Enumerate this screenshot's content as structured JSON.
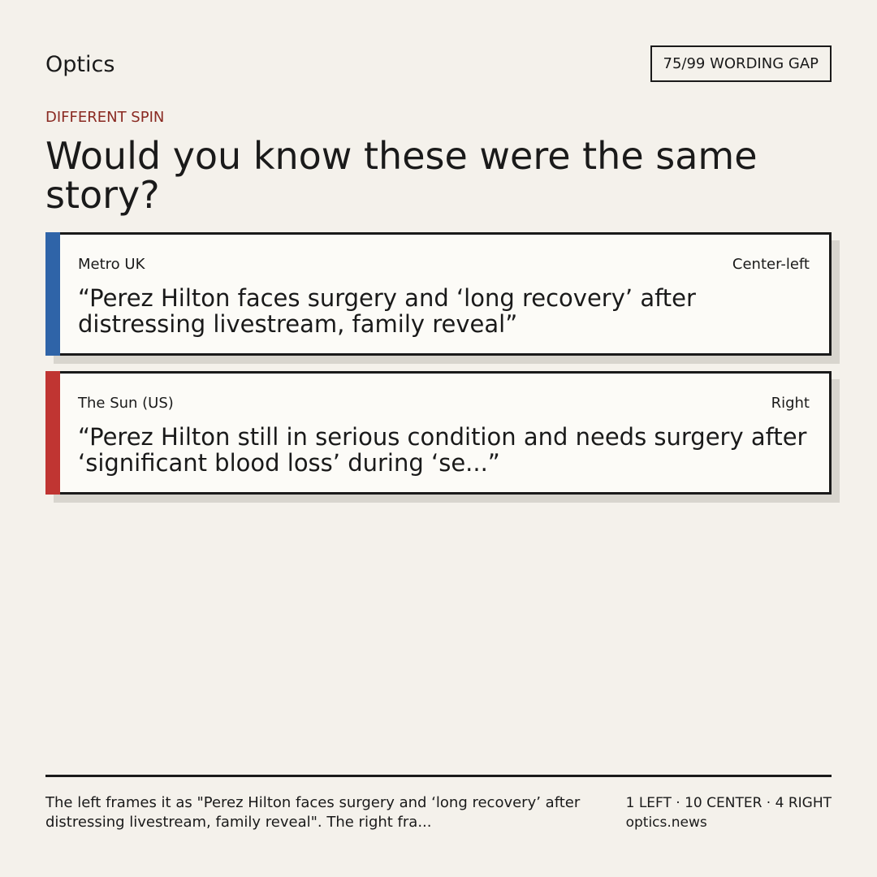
{
  "header": {
    "brand": "Optics",
    "badge": "75/99 WORDING GAP"
  },
  "kicker": "DIFFERENT SPIN",
  "headline": "Would you know these were the same story?",
  "cards": [
    {
      "outlet": "Metro UK",
      "lean": "Center-left",
      "quote": "“Perez Hilton faces surgery and ‘long recovery’ after distressing livestream, family reveal”"
    },
    {
      "outlet": "The Sun (US)",
      "lean": "Right",
      "quote": "“Perez Hilton still in serious condition and needs surgery after ‘significant blood loss’ during ‘se...”"
    }
  ],
  "footer": {
    "summary": "The left frames it as \"Perez Hilton faces surgery and ‘long recovery’ after distressing livestream, family reveal\". The right fra...",
    "counts": "1 LEFT · 10 CENTER · 4 RIGHT",
    "site": "optics.news"
  }
}
